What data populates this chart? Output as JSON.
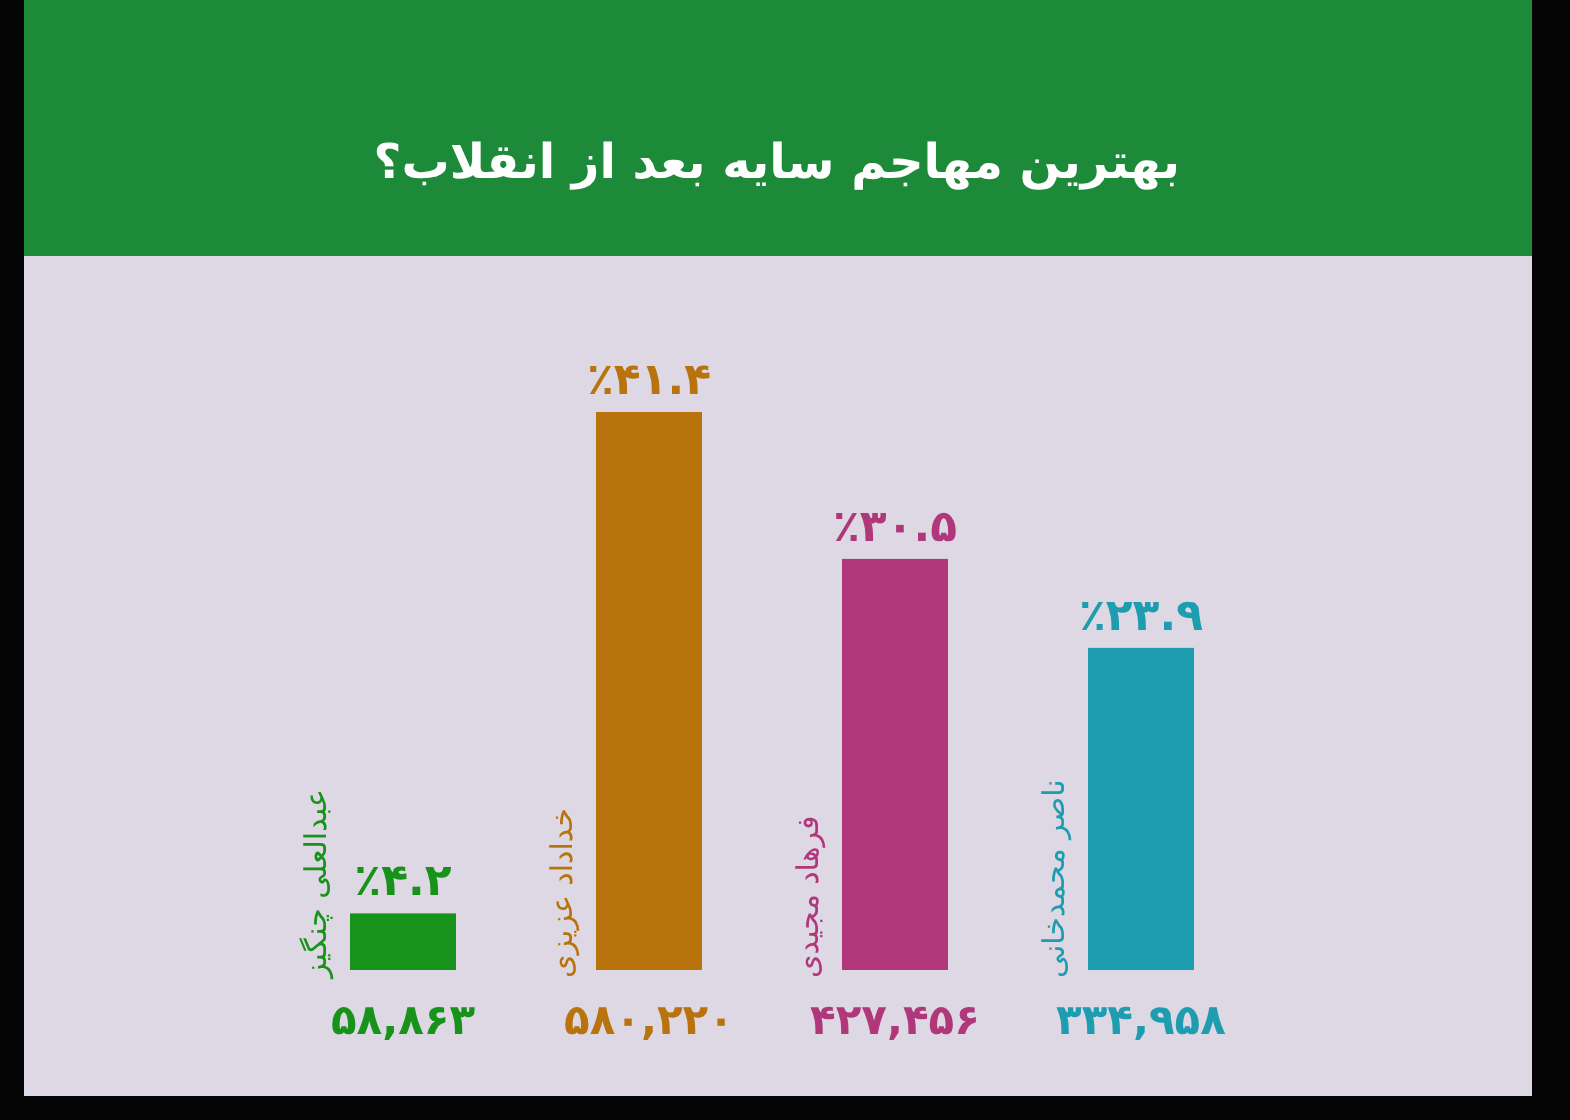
{
  "chart_data": {
    "type": "bar",
    "title": "بهترین مهاجم سایه بعد از انقلاب؟",
    "categories": [
      "عبدالعلی چنگیز",
      "خداداد عزیزی",
      "فرهاد مجیدی",
      "ناصر محمدخانی"
    ],
    "values": [
      4.2,
      41.4,
      30.5,
      23.9
    ],
    "colors": [
      "#17921a",
      "#b8730c",
      "#b0387a",
      "#1f9db0"
    ],
    "value_labels": [
      "٪۴.۲",
      "٪۴۱.۴",
      "٪۳۰.۵",
      "٪۲۳.۹"
    ],
    "annotations": [
      "۵۸,۸۶۳",
      "۵۸۰,۲۲۰",
      "۴۲۷,۴۵۶",
      "۳۳۴,۹۵۸"
    ]
  }
}
